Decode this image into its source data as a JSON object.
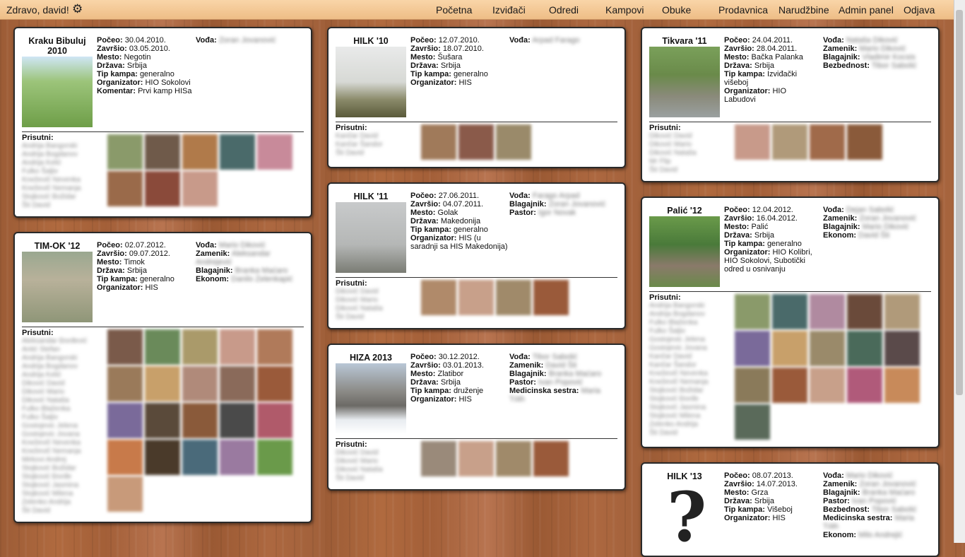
{
  "topbar": {
    "greeting": "Zdravo, david!",
    "nav": [
      "Početna",
      "Izviđači",
      "Odredi",
      "Kampovi",
      "Obuke",
      "Prodavnica",
      "Narudžbine",
      "Admin panel",
      "Odjava"
    ]
  },
  "labels": {
    "start": "Počeo:",
    "end": "Završio:",
    "place": "Mesto:",
    "country": "Država:",
    "type": "Tip kampa:",
    "organizer": "Organizator:",
    "comment": "Komentar:",
    "leader": "Vođa:",
    "deputy": "Zamenik:",
    "treasurer": "Blagajnik:",
    "pastor": "Pastor:",
    "safety": "Bezbednost:",
    "nurse": "Medicinska sestra:",
    "economist": "Ekonom:",
    "present": "Prisutni:"
  },
  "camps": {
    "krakuBibuluj": {
      "title": "Kraku Bibuluj 2010",
      "start": "30.04.2010.",
      "end": "03.05.2010.",
      "place": "Negotin",
      "country": "Srbija",
      "type": "generalno",
      "organizer": "HIO Sokolovi",
      "comment": "Prvi kamp HISa",
      "leader": "Zoran Jovanović",
      "names": [
        "Andrija Bangorski",
        "Andrija Bogdanov",
        "Andrija Kelić",
        "Fulko Šaljiv",
        "Kneževič Nevenka",
        "Kneževič Nemanja",
        "Stojković Božidar",
        "Šti David"
      ]
    },
    "timok": {
      "title": "TIM-OK '12",
      "start": "02.07.2012.",
      "end": "09.07.2012.",
      "place": "Timok",
      "country": "Srbija",
      "type": "generalno",
      "organizer": "HIS",
      "leader": "Mario Diković",
      "deputy": "Aleksandar Andrejević",
      "treasurer": "Branka Maćaro",
      "economist": "Danilo Zelenkapić",
      "names": [
        "Aleksandar Đorđević",
        "Antić Stefan",
        "Andrija Bangorski",
        "Andrija Bogdanov",
        "Andrija Kelić",
        "Diković David",
        "Diković Mario",
        "Diković Nataša",
        "Fulko Blaženka",
        "Fulko Šaljiv",
        "Gostojevic Jelena",
        "Gostojevic Jovana",
        "Kneževič Nevenka",
        "Kneževič Nemanja",
        "Mirkovi Andrej",
        "Stojković Božidar",
        "Stojković Đorđe",
        "Stojković Jasmina",
        "Stojković Milena",
        "Zelenko Andrija",
        "Šti David"
      ]
    },
    "hilk10": {
      "title": "HILK '10",
      "start": "12.07.2010.",
      "end": "18.07.2010.",
      "place": "Šušara",
      "country": "Srbija",
      "type": "generalno",
      "organizer": "HIS",
      "leader": "Arpad Farago",
      "names": [
        "Kančar David",
        "Kančar Šandor",
        "Šti David"
      ]
    },
    "hilk11": {
      "title": "HILK '11",
      "start": "27.06.2011.",
      "end": "04.07.2011.",
      "place": "Golak",
      "country": "Makedonija",
      "type": "generalno",
      "organizer": "HIS (u saradnji sa HIS Makedonija)",
      "leader": "Farago Arpad",
      "treasurer": "Zoran Jovanović",
      "pastor": "Igor Novak",
      "names": [
        "Diković David",
        "Diković Mario",
        "Diković Nataša",
        "Šti David"
      ]
    },
    "hiza": {
      "title": "HIZA 2013",
      "start": "30.12.2012.",
      "end": "03.01.2013.",
      "place": "Zlatibor",
      "country": "Srbija",
      "type": "druženje",
      "organizer": "HIS",
      "leader": "Tibor Sabolić",
      "deputy": "David Šti",
      "treasurer": "Branka Maćaro",
      "pastor": "Ivan Popović",
      "nurse": "Maria Tóth",
      "names": [
        "Diković David",
        "Diković Mario",
        "Diković Nataša",
        "Šti David"
      ]
    },
    "tikvara": {
      "title": "Tikvara '11",
      "start": "24.04.2011.",
      "end": "28.04.2011.",
      "place": "Bačka Palanka",
      "country": "Srbija",
      "type": "Izviđački višeboj",
      "organizer": "HIO Labudovi",
      "leader": "Nataša Diković",
      "deputy": "Mario Diković",
      "treasurer": "Vladimir Kocsis",
      "safety": "Tibor Sabolić",
      "names": [
        "Diković David",
        "Diković Mario",
        "Diković Nataša",
        "Mr Flip",
        "Šti David"
      ]
    },
    "palic": {
      "title": "Palić '12",
      "start": "12.04.2012.",
      "end": "16.04.2012.",
      "place": "Palić",
      "country": "Srbija",
      "type": "generalno",
      "organizer": "HIO Kolibri, HIO Sokolovi, Subotički odred u osnivanju",
      "leader": "Dejan Sabolić",
      "deputy": "Zoran Jovanović",
      "treasurer": "Mario Diković",
      "economist": "David Šti",
      "names": [
        "Andrija Bangorski",
        "Andrija Bogdanov",
        "Fulko Blaženka",
        "Fulko Šaljiv",
        "Gostojevic Jelena",
        "Gostojevic Jovana",
        "Kančar David",
        "Kančar Šandor",
        "Kneževič Nevenka",
        "Kneževič Nemanja",
        "Stojković Božidar",
        "Stojković Đorđe",
        "Stojković Jasmina",
        "Stojković Milena",
        "Zelenko Andrija",
        "Šti David"
      ]
    },
    "hilk13": {
      "title": "HILK '13",
      "start": "08.07.2013.",
      "end": "14.07.2013.",
      "place": "Grza",
      "country": "Srbija",
      "type": "Višeboj",
      "organizer": "HIS",
      "leader": "Mario Diković",
      "deputy": "Zoran Jovanović",
      "treasurer": "Branka Maćaro",
      "pastor": "Ivan Popović",
      "safety": "Tibor Sabolić",
      "nurse": "Maria Tóth",
      "economist": "Milo Andrejić"
    }
  },
  "colors": {
    "topbar": "#f2c693",
    "card_border": "#2a2a2a",
    "wood": "#a6653d"
  }
}
